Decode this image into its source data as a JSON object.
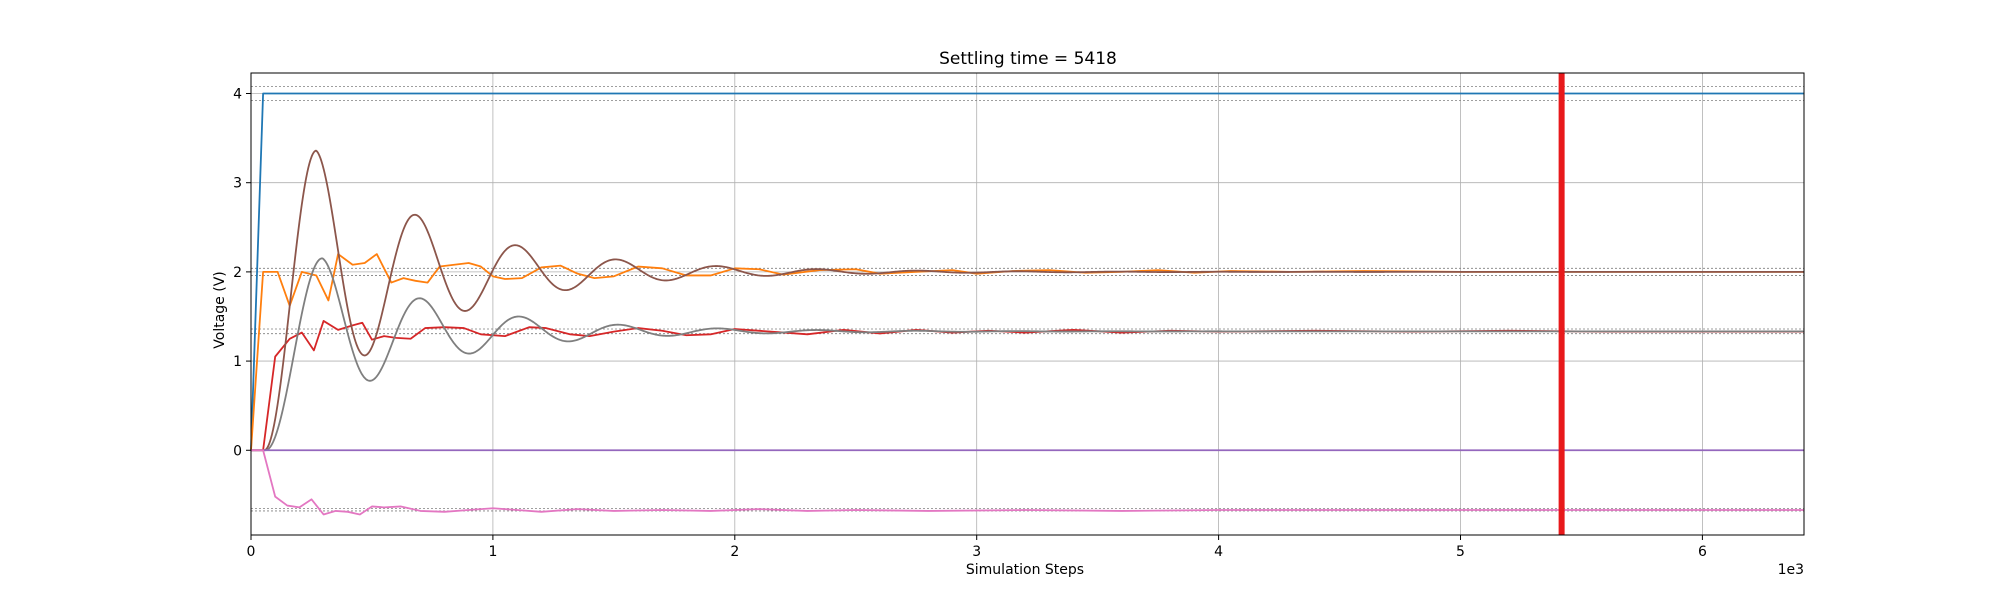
{
  "chart_data": {
    "type": "line",
    "title": "Settling time = 5418",
    "xlabel": "Simulation Steps",
    "ylabel": "Voltage (V)",
    "x_offset_label": "1e3",
    "xlim": [
      0,
      6.42
    ],
    "ylim": [
      -0.95,
      4.23
    ],
    "xticks": [
      0,
      1,
      2,
      3,
      4,
      5,
      6
    ],
    "xtick_labels": [
      "0",
      "1",
      "2",
      "3",
      "4",
      "5",
      "6"
    ],
    "yticks": [
      0,
      1,
      2,
      3,
      4
    ],
    "ytick_labels": [
      "0",
      "1",
      "2",
      "3",
      "4"
    ],
    "grid": true,
    "settling_marker": {
      "x": 5.418,
      "color": "#e8191b"
    },
    "tolerance_bands": [
      {
        "center": 4.0,
        "lower": 3.92,
        "upper": 4.08
      },
      {
        "center": 2.0,
        "lower": 1.96,
        "upper": 2.04
      },
      {
        "center": 1.333,
        "lower": 1.307,
        "upper": 1.36
      },
      {
        "center": -0.667,
        "lower": -0.68,
        "upper": -0.653
      }
    ],
    "series": [
      {
        "color": "#1f77b4",
        "type": "step",
        "final": 4.0,
        "rise_start": 0.0,
        "rise_end": 0.05
      },
      {
        "color": "#ff7f0e",
        "type": "jagged",
        "final": 2.0,
        "start": 0.05,
        "points": [
          [
            0,
            0
          ],
          [
            0.05,
            2.0
          ],
          [
            0.11,
            2.0
          ],
          [
            0.16,
            1.62
          ],
          [
            0.21,
            2.0
          ],
          [
            0.27,
            1.96
          ],
          [
            0.32,
            1.68
          ],
          [
            0.36,
            2.2
          ],
          [
            0.42,
            2.08
          ],
          [
            0.47,
            2.1
          ],
          [
            0.52,
            2.2
          ],
          [
            0.58,
            1.88
          ],
          [
            0.63,
            1.93
          ],
          [
            0.68,
            1.9
          ],
          [
            0.73,
            1.88
          ],
          [
            0.78,
            2.06
          ],
          [
            0.84,
            2.08
          ],
          [
            0.9,
            2.1
          ],
          [
            0.95,
            2.06
          ],
          [
            1.0,
            1.95
          ],
          [
            1.05,
            1.92
          ],
          [
            1.12,
            1.93
          ],
          [
            1.2,
            2.05
          ],
          [
            1.28,
            2.07
          ],
          [
            1.35,
            1.98
          ],
          [
            1.42,
            1.93
          ],
          [
            1.5,
            1.95
          ],
          [
            1.6,
            2.06
          ],
          [
            1.7,
            2.04
          ],
          [
            1.8,
            1.96
          ],
          [
            1.9,
            1.96
          ],
          [
            2.0,
            2.04
          ],
          [
            2.1,
            2.03
          ],
          [
            2.2,
            1.97
          ],
          [
            2.35,
            2.02
          ],
          [
            2.5,
            2.03
          ],
          [
            2.6,
            1.98
          ],
          [
            2.75,
            2.0
          ],
          [
            2.9,
            2.02
          ],
          [
            3.0,
            1.98
          ],
          [
            3.15,
            2.01
          ],
          [
            3.3,
            2.02
          ],
          [
            3.45,
            1.99
          ],
          [
            3.6,
            2.0
          ],
          [
            3.75,
            2.02
          ],
          [
            3.9,
            1.99
          ],
          [
            4.05,
            2.01
          ],
          [
            4.3,
            2.0
          ],
          [
            4.6,
            2.01
          ],
          [
            5.0,
            2.0
          ],
          [
            5.5,
            2.0
          ],
          [
            6.0,
            2.0
          ],
          [
            6.42,
            2.0
          ]
        ]
      },
      {
        "color": "#d62728",
        "type": "jagged",
        "final": 1.333,
        "points": [
          [
            0,
            0
          ],
          [
            0.05,
            0
          ],
          [
            0.1,
            1.05
          ],
          [
            0.16,
            1.25
          ],
          [
            0.21,
            1.32
          ],
          [
            0.26,
            1.12
          ],
          [
            0.3,
            1.45
          ],
          [
            0.36,
            1.35
          ],
          [
            0.42,
            1.4
          ],
          [
            0.46,
            1.43
          ],
          [
            0.5,
            1.24
          ],
          [
            0.55,
            1.28
          ],
          [
            0.6,
            1.26
          ],
          [
            0.66,
            1.25
          ],
          [
            0.72,
            1.37
          ],
          [
            0.8,
            1.38
          ],
          [
            0.88,
            1.37
          ],
          [
            0.95,
            1.3
          ],
          [
            1.05,
            1.28
          ],
          [
            1.15,
            1.38
          ],
          [
            1.22,
            1.37
          ],
          [
            1.32,
            1.3
          ],
          [
            1.4,
            1.28
          ],
          [
            1.5,
            1.33
          ],
          [
            1.6,
            1.37
          ],
          [
            1.7,
            1.34
          ],
          [
            1.8,
            1.29
          ],
          [
            1.9,
            1.3
          ],
          [
            2.0,
            1.36
          ],
          [
            2.15,
            1.33
          ],
          [
            2.3,
            1.3
          ],
          [
            2.45,
            1.35
          ],
          [
            2.6,
            1.31
          ],
          [
            2.75,
            1.35
          ],
          [
            2.9,
            1.32
          ],
          [
            3.05,
            1.34
          ],
          [
            3.2,
            1.32
          ],
          [
            3.4,
            1.35
          ],
          [
            3.6,
            1.32
          ],
          [
            3.8,
            1.34
          ],
          [
            4.0,
            1.33
          ],
          [
            4.4,
            1.34
          ],
          [
            4.8,
            1.33
          ],
          [
            5.2,
            1.34
          ],
          [
            5.6,
            1.33
          ],
          [
            6.0,
            1.33
          ],
          [
            6.42,
            1.33
          ]
        ]
      },
      {
        "color": "#8c564b",
        "type": "oscillation",
        "final": 2.0,
        "start": 0.055,
        "rise": 0.19,
        "amp": 1.36,
        "peak_x": 0.27,
        "period": 0.415,
        "decay": 0.76
      },
      {
        "color": "#7f7f7f",
        "type": "oscillation",
        "final": 1.333,
        "start": 0.06,
        "rise": 0.21,
        "amp": 0.82,
        "peak_x": 0.295,
        "period": 0.41,
        "decay": 0.8
      },
      {
        "color": "#9467bd",
        "type": "flat",
        "final": 0.0
      },
      {
        "color": "#e377c2",
        "type": "jagged",
        "final": -0.667,
        "points": [
          [
            0,
            0
          ],
          [
            0.05,
            0
          ],
          [
            0.1,
            -0.52
          ],
          [
            0.15,
            -0.62
          ],
          [
            0.2,
            -0.64
          ],
          [
            0.25,
            -0.55
          ],
          [
            0.3,
            -0.72
          ],
          [
            0.35,
            -0.68
          ],
          [
            0.4,
            -0.69
          ],
          [
            0.45,
            -0.72
          ],
          [
            0.5,
            -0.63
          ],
          [
            0.55,
            -0.64
          ],
          [
            0.62,
            -0.63
          ],
          [
            0.7,
            -0.68
          ],
          [
            0.8,
            -0.69
          ],
          [
            0.9,
            -0.67
          ],
          [
            1.0,
            -0.65
          ],
          [
            1.1,
            -0.67
          ],
          [
            1.2,
            -0.69
          ],
          [
            1.35,
            -0.66
          ],
          [
            1.5,
            -0.68
          ],
          [
            1.7,
            -0.67
          ],
          [
            1.9,
            -0.68
          ],
          [
            2.1,
            -0.66
          ],
          [
            2.3,
            -0.68
          ],
          [
            2.5,
            -0.67
          ],
          [
            2.8,
            -0.68
          ],
          [
            3.2,
            -0.67
          ],
          [
            3.6,
            -0.68
          ],
          [
            4.0,
            -0.67
          ],
          [
            4.5,
            -0.67
          ],
          [
            5.0,
            -0.67
          ],
          [
            5.5,
            -0.67
          ],
          [
            6.0,
            -0.67
          ],
          [
            6.42,
            -0.67
          ]
        ]
      }
    ]
  }
}
